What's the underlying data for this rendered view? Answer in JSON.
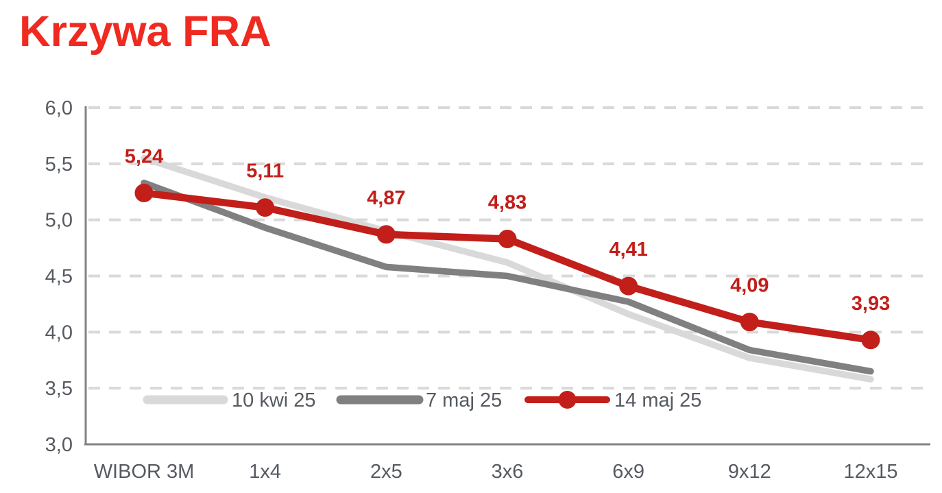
{
  "page": {
    "title": "Krzywa FRA"
  },
  "colors": {
    "title_red": "#ef2a20",
    "series_red": "#c21e1a",
    "series_dark_gray": "#808080",
    "series_light_gray": "#d9d9d9",
    "gridline": "#d9d9d9",
    "axis_line": "#828282",
    "axis_label": "#565a61"
  },
  "chart_data": {
    "type": "line",
    "title": "Krzywa FRA",
    "xlabel": "",
    "ylabel": "",
    "categories": [
      "WIBOR 3M",
      "1x4",
      "2x5",
      "3x6",
      "6x9",
      "9x12",
      "12x15"
    ],
    "ylim": [
      3.0,
      6.0
    ],
    "y_step": 0.5,
    "y_tick_labels": [
      "6,0",
      "5,5",
      "5,0",
      "4,5",
      "4,0",
      "3,5",
      "3,0"
    ],
    "grid": "horizontal-dashed",
    "legend_position": "inside-bottom",
    "series": [
      {
        "name": "10 kwi 25",
        "color": "#d9d9d9",
        "markers": false,
        "values": [
          5.55,
          5.2,
          4.9,
          4.62,
          4.16,
          3.77,
          3.58
        ]
      },
      {
        "name": "7 maj 25",
        "color": "#808080",
        "markers": false,
        "values": [
          5.33,
          4.93,
          4.58,
          4.5,
          4.27,
          3.84,
          3.65
        ]
      },
      {
        "name": "14 maj 25",
        "color": "#c21e1a",
        "markers": true,
        "values": [
          5.24,
          5.11,
          4.87,
          4.83,
          4.41,
          4.09,
          3.93
        ],
        "data_labels": [
          "5,24",
          "5,11",
          "4,87",
          "4,83",
          "4,41",
          "4,09",
          "3,93"
        ]
      }
    ]
  }
}
